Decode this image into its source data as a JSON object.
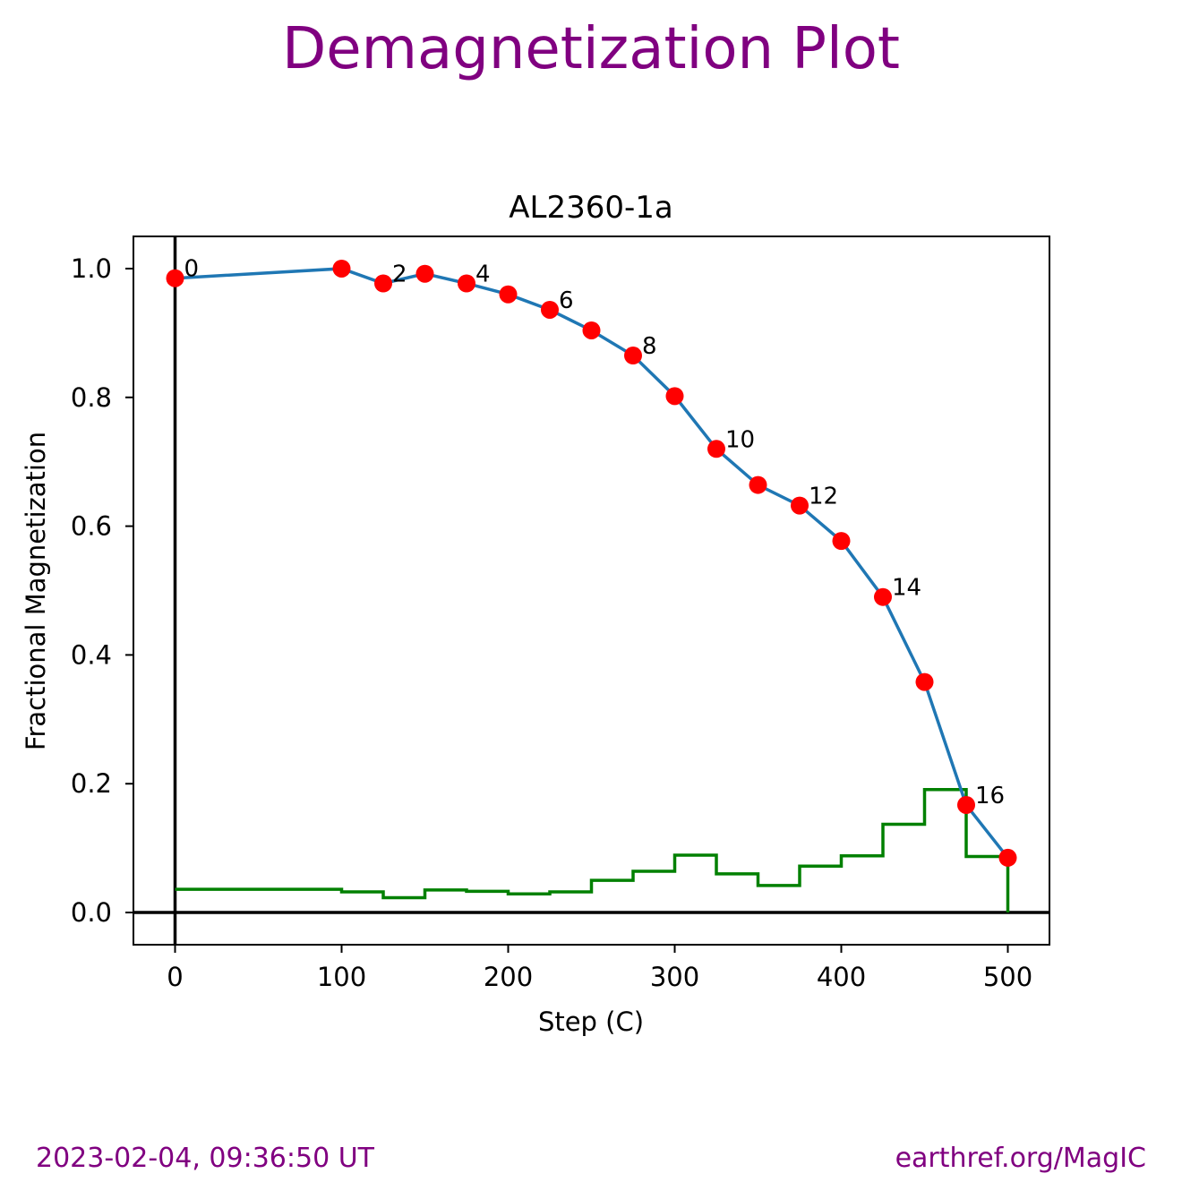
{
  "figure": {
    "suptitle": "Demagnetization Plot",
    "footer_left": "2023-02-04, 09:36:50 UT",
    "footer_right": "earthref.org/MagIC",
    "accent_color": "#800080"
  },
  "chart_data": {
    "type": "line",
    "title": "AL2360-1a",
    "xlabel": "Step (C)",
    "ylabel": "Fractional Magnetization",
    "xlim": [
      -25,
      525
    ],
    "ylim": [
      -0.05,
      1.05
    ],
    "xticks": [
      0,
      100,
      200,
      300,
      400,
      500
    ],
    "yticks": [
      0.0,
      0.2,
      0.4,
      0.6,
      0.8,
      1.0
    ],
    "xtick_labels": [
      "0",
      "100",
      "200",
      "300",
      "400",
      "500"
    ],
    "ytick_labels": [
      "0.0",
      "0.2",
      "0.4",
      "0.6",
      "0.8",
      "1.0"
    ],
    "grid": false,
    "series": [
      {
        "kind": "line-with-markers",
        "line_color": "#1f77b4",
        "marker_color": "#ff0000",
        "x": [
          0,
          100,
          125,
          150,
          175,
          200,
          225,
          250,
          275,
          300,
          325,
          350,
          375,
          400,
          425,
          450,
          475,
          500
        ],
        "y": [
          0.985,
          1.0,
          0.977,
          0.992,
          0.977,
          0.96,
          0.936,
          0.904,
          0.865,
          0.802,
          0.72,
          0.664,
          0.632,
          0.577,
          0.49,
          0.358,
          0.167,
          0.085
        ]
      },
      {
        "kind": "step",
        "line_color": "#008000",
        "x": [
          0,
          100,
          125,
          150,
          175,
          200,
          225,
          250,
          275,
          300,
          325,
          350,
          375,
          400,
          425,
          450,
          475,
          500
        ],
        "y": [
          0.036,
          0.032,
          0.023,
          0.035,
          0.033,
          0.029,
          0.032,
          0.05,
          0.064,
          0.089,
          0.06,
          0.042,
          0.072,
          0.088,
          0.137,
          0.191,
          0.087,
          0.0
        ]
      }
    ],
    "point_labels": [
      {
        "index": 0,
        "text": "0"
      },
      {
        "index": 2,
        "text": "2"
      },
      {
        "index": 4,
        "text": "4"
      },
      {
        "index": 6,
        "text": "6"
      },
      {
        "index": 8,
        "text": "8"
      },
      {
        "index": 10,
        "text": "10"
      },
      {
        "index": 12,
        "text": "12"
      },
      {
        "index": 14,
        "text": "14"
      },
      {
        "index": 16,
        "text": "16"
      }
    ],
    "reference_lines": {
      "x": 0,
      "y": 0,
      "color": "#000000"
    }
  }
}
